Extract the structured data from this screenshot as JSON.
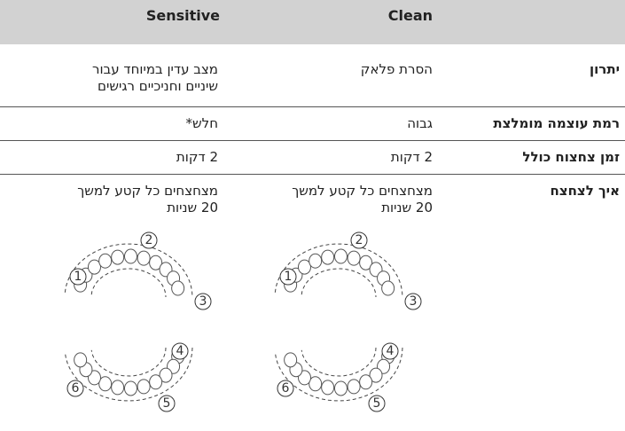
{
  "table": {
    "header": {
      "clean": "Clean",
      "sensitive": "Sensitive"
    },
    "rows": [
      {
        "label": "יתרון",
        "clean": "הסרת פלאק",
        "sensitive": "מצב עדין במיוחד עבור\nשיניים וחניכיים רגישים"
      },
      {
        "label": "רמת עוצמה מומלצת",
        "clean": "גבוה",
        "sensitive": "חלש*"
      },
      {
        "label": "זמן צחצוח כולל",
        "clean": "2 דקות",
        "sensitive": "2 דקות"
      },
      {
        "label": "איך לצחצח",
        "clean": "מצחצחים כל קטע למשך\n20 שניות",
        "sensitive": "מצחצחים כל קטע למשך\n20 שניות"
      }
    ],
    "upper_jaw_labels": [
      "1",
      "2",
      "3"
    ],
    "lower_jaw_labels": [
      "4",
      "5",
      "6"
    ]
  }
}
